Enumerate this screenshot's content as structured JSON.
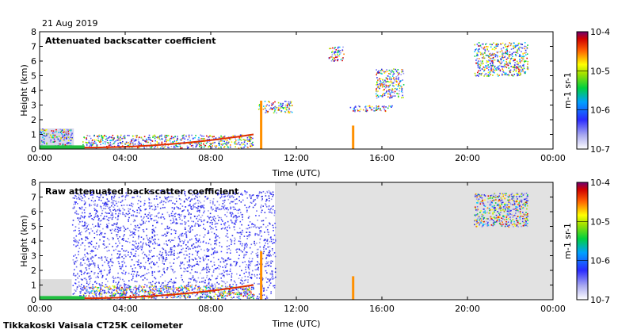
{
  "date": "21 Aug 2019",
  "footer": "Tikkakoski Vaisala CT25K ceilometer",
  "chart_data": [
    {
      "type": "heatmap",
      "title": "Attenuated backscatter coefficient",
      "xlabel": "Time (UTC)",
      "ylabel": "Height (km)",
      "x_ticks": [
        "00:00",
        "04:00",
        "08:00",
        "12:00",
        "16:00",
        "20:00",
        "00:00"
      ],
      "xlim_hours": [
        0,
        24
      ],
      "y_ticks": [
        "0",
        "1",
        "2",
        "3",
        "4",
        "5",
        "6",
        "7",
        "8"
      ],
      "ylim_km": [
        0,
        8
      ],
      "colorbar": {
        "scale": "log",
        "range": [
          1e-07,
          0.0001
        ],
        "tick_labels": [
          "10-7",
          "10-6",
          "10-5",
          "10-4"
        ],
        "unit_label": "m-1 sr-1"
      },
      "features": [
        {
          "name": "low aerosol layer",
          "time_hours": [
            0,
            1.5
          ],
          "height_km": [
            0,
            1.4
          ]
        },
        {
          "name": "boundary layer top",
          "time_hours": [
            2,
            10
          ],
          "height_km": [
            0.1,
            1.0
          ]
        },
        {
          "name": "mid cloud",
          "time_hours": [
            10.2,
            11.8
          ],
          "height_km": [
            2.5,
            3.3
          ]
        },
        {
          "name": "cloud base",
          "time_hours": [
            14.5,
            16.5
          ],
          "height_km": [
            2.6,
            3.0
          ]
        },
        {
          "name": "high cloud",
          "time_hours": [
            13.5,
            14.2
          ],
          "height_km": [
            6.0,
            7.0
          ]
        },
        {
          "name": "mid-level cloud",
          "time_hours": [
            15.7,
            17.0
          ],
          "height_km": [
            3.5,
            5.5
          ]
        },
        {
          "name": "upper cloud",
          "time_hours": [
            20.3,
            22.8
          ],
          "height_km": [
            5.0,
            7.3
          ]
        }
      ]
    },
    {
      "type": "heatmap",
      "title": "Raw attenuated backscatter coefficient",
      "xlabel": "Time (UTC)",
      "ylabel": "Height (km)",
      "x_ticks": [
        "00:00",
        "04:00",
        "08:00",
        "12:00",
        "16:00",
        "20:00",
        "00:00"
      ],
      "xlim_hours": [
        0,
        24
      ],
      "y_ticks": [
        "0",
        "1",
        "2",
        "3",
        "4",
        "5",
        "6",
        "7",
        "8"
      ],
      "ylim_km": [
        0,
        8
      ],
      "colorbar": {
        "scale": "log",
        "range": [
          1e-07,
          0.0001
        ],
        "tick_labels": [
          "10-7",
          "10-6",
          "10-5",
          "10-4"
        ],
        "unit_label": "m-1 sr-1"
      },
      "features": [
        {
          "name": "noise field",
          "time_hours": [
            1.5,
            11.0
          ],
          "height_km": [
            0,
            7.5
          ]
        },
        {
          "name": "boundary layer top",
          "time_hours": [
            2,
            10
          ],
          "height_km": [
            0.1,
            1.0
          ]
        },
        {
          "name": "upper cloud",
          "time_hours": [
            20.3,
            22.8
          ],
          "height_km": [
            5.0,
            7.3
          ]
        }
      ]
    }
  ]
}
